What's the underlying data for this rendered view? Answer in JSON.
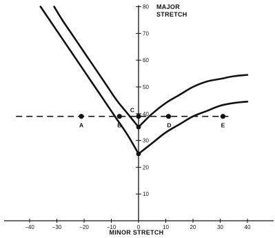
{
  "chart_data": {
    "type": "line",
    "xlabel": "MINOR STRETCH",
    "ylabel_lines": [
      "MAJOR",
      "STRETCH"
    ],
    "xlim": [
      -50,
      45
    ],
    "ylim": [
      0,
      80
    ],
    "x_ticks": [
      -40,
      -30,
      -20,
      -10,
      0,
      10,
      20,
      30,
      40
    ],
    "x_tick_labels": [
      "−40",
      "−30",
      "−20",
      "−10",
      "0",
      "10",
      "20",
      "30",
      "40"
    ],
    "y_ticks": [
      10,
      20,
      30,
      40,
      50,
      60,
      70,
      80
    ],
    "y_tick_labels": [
      "10",
      "20",
      "30",
      "40",
      "50",
      "60",
      "70",
      "80"
    ],
    "series": [
      {
        "x": [
          -31,
          -28,
          -24,
          -20,
          -16,
          -12,
          -8,
          -4,
          0,
          5,
          10,
          15,
          20,
          25,
          30,
          35,
          40
        ],
        "y": [
          80,
          75,
          69,
          63,
          57,
          51,
          45,
          40,
          35,
          40,
          44,
          47,
          50,
          52,
          53,
          54,
          54.5
        ]
      },
      {
        "x": [
          -36,
          -32,
          -28,
          -24,
          -20,
          -16,
          -12,
          -8,
          -4,
          0,
          5,
          10,
          15,
          20,
          25,
          30,
          35,
          40
        ],
        "y": [
          80,
          74,
          68,
          62,
          56,
          50,
          44,
          38,
          32,
          25,
          29,
          33,
          36,
          39,
          41,
          43,
          44,
          44.5
        ]
      }
    ],
    "reference_line": {
      "y": 39,
      "x_start": -45,
      "x_end": 33,
      "style": "dashed"
    },
    "points": [
      {
        "label": "A",
        "x": -21,
        "y": 39
      },
      {
        "label": "B",
        "x": -7,
        "y": 39
      },
      {
        "label": "C",
        "x": 0,
        "y": 39
      },
      {
        "label": "D",
        "x": 11,
        "y": 39
      },
      {
        "label": "E",
        "x": 31,
        "y": 39
      }
    ],
    "grid": false,
    "legend": "none"
  }
}
